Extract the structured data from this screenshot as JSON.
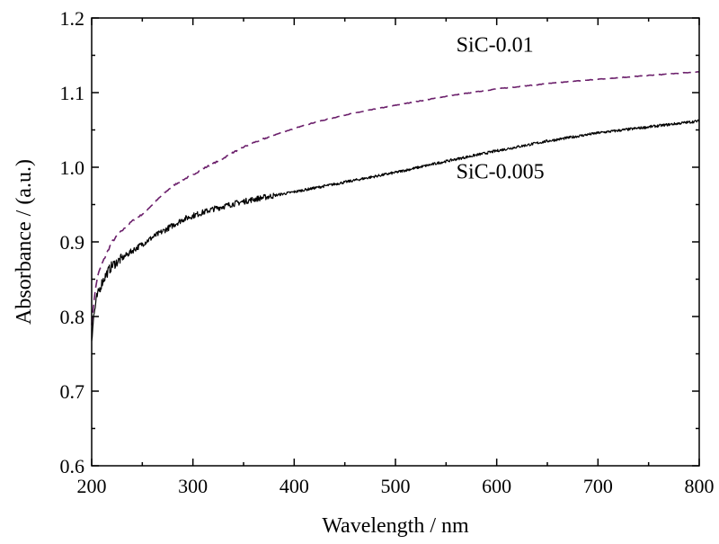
{
  "chart_data": {
    "type": "line",
    "title": "",
    "xlabel": "Wavelength / nm",
    "ylabel": "Absorbance / (a.u.)",
    "xlim": [
      200,
      800
    ],
    "ylim": [
      0.6,
      1.2
    ],
    "xticks": [
      200,
      300,
      400,
      500,
      600,
      700,
      800
    ],
    "yticks": [
      0.6,
      0.7,
      0.8,
      0.9,
      1.0,
      1.1,
      1.2
    ],
    "xtick_labels": [
      "200",
      "300",
      "400",
      "500",
      "600",
      "700",
      "800"
    ],
    "ytick_labels": [
      "0.6",
      "0.7",
      "0.8",
      "0.9",
      "1.0",
      "1.1",
      "1.2"
    ],
    "grid": false,
    "legend": "none",
    "series": [
      {
        "name": "SiC-0.01",
        "color": "#6b1f6b",
        "style": "dashed",
        "x": [
          200,
          203,
          206,
          210,
          215,
          220,
          230,
          240,
          250,
          260,
          270,
          280,
          290,
          300,
          310,
          320,
          330,
          340,
          350,
          360,
          370,
          380,
          400,
          420,
          450,
          480,
          500,
          550,
          600,
          650,
          700,
          750,
          800
        ],
        "y": [
          0.79,
          0.83,
          0.855,
          0.87,
          0.885,
          0.9,
          0.915,
          0.928,
          0.937,
          0.95,
          0.963,
          0.975,
          0.983,
          0.99,
          0.998,
          1.005,
          1.012,
          1.02,
          1.027,
          1.033,
          1.038,
          1.043,
          1.052,
          1.06,
          1.07,
          1.078,
          1.083,
          1.095,
          1.105,
          1.112,
          1.118,
          1.123,
          1.128
        ]
      },
      {
        "name": "SiC-0.005",
        "color": "#000000",
        "style": "solid",
        "x": [
          200,
          202,
          205,
          210,
          215,
          220,
          230,
          240,
          250,
          260,
          270,
          280,
          290,
          300,
          320,
          340,
          360,
          380,
          400,
          450,
          500,
          550,
          600,
          650,
          700,
          750,
          800
        ],
        "y": [
          0.77,
          0.8,
          0.825,
          0.845,
          0.858,
          0.868,
          0.878,
          0.888,
          0.897,
          0.906,
          0.914,
          0.922,
          0.93,
          0.935,
          0.944,
          0.951,
          0.957,
          0.962,
          0.967,
          0.98,
          0.993,
          1.008,
          1.022,
          1.035,
          1.046,
          1.054,
          1.062
        ]
      }
    ],
    "annotations": [
      {
        "text": "SiC-0.01",
        "series": "SiC-0.01"
      },
      {
        "text": "SiC-0.005",
        "series": "SiC-0.005"
      }
    ]
  }
}
